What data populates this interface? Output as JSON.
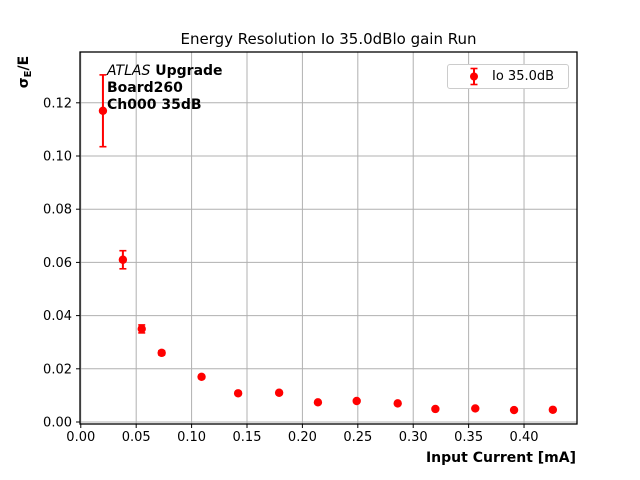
{
  "figure": {
    "title": "Energy Resolution Io 35.0dBlo gain Run",
    "xlabel": "Input Current [mA]",
    "ylabel": {
      "symbol": "σ",
      "subscript": "E",
      "suffix": "/E"
    },
    "annotation": {
      "line1_italic": "ATLAS",
      "line1_bold": " Upgrade",
      "line2": "Board260",
      "line3": "Ch000 35dB"
    },
    "legend": {
      "label": "Io 35.0dB"
    }
  },
  "chart_data": {
    "type": "scatter",
    "title": "Energy Resolution Io 35.0dBlo gain Run",
    "xlabel": "Input Current [mA]",
    "ylabel": "σ_E/E",
    "grid": true,
    "legend_position": "upper right",
    "annotations": [
      "ATLAS Upgrade",
      "Board260",
      "Ch000 35dB"
    ],
    "xlim": [
      -0.0007,
      0.4478
    ],
    "ylim": [
      -0.00075,
      0.1391
    ],
    "xticks": [
      0.0,
      0.05,
      0.1,
      0.15,
      0.2,
      0.25,
      0.3,
      0.35,
      0.4
    ],
    "xtick_labels": [
      "0.00",
      "0.05",
      "0.10",
      "0.15",
      "0.20",
      "0.25",
      "0.30",
      "0.35",
      "0.40"
    ],
    "yticks": [
      0.0,
      0.02,
      0.04,
      0.06,
      0.08,
      0.1,
      0.12
    ],
    "ytick_labels": [
      "0.00",
      "0.02",
      "0.04",
      "0.06",
      "0.08",
      "0.10",
      "0.12"
    ],
    "series": [
      {
        "name": "Io 35.0dB",
        "color": "#ff0000",
        "x": [
          0.02,
          0.038,
          0.055,
          0.073,
          0.109,
          0.142,
          0.179,
          0.214,
          0.249,
          0.286,
          0.32,
          0.356,
          0.391,
          0.426
        ],
        "y": [
          0.117,
          0.061,
          0.035,
          0.026,
          0.017,
          0.0108,
          0.011,
          0.0074,
          0.0079,
          0.007,
          0.0049,
          0.0051,
          0.0045,
          0.0046
        ],
        "yerr": [
          0.0135,
          0.0034,
          0.0015,
          0.0008,
          0.0006,
          0.0005,
          0.0005,
          0.0004,
          0.0004,
          0.0004,
          0.0003,
          0.0003,
          0.0003,
          0.0003
        ]
      }
    ]
  },
  "style": {
    "accent": "#ff0000",
    "grid_color": "#b0b0b0",
    "axis_color": "#000000",
    "legend_border": "#cccccc",
    "background": "#ffffff"
  }
}
